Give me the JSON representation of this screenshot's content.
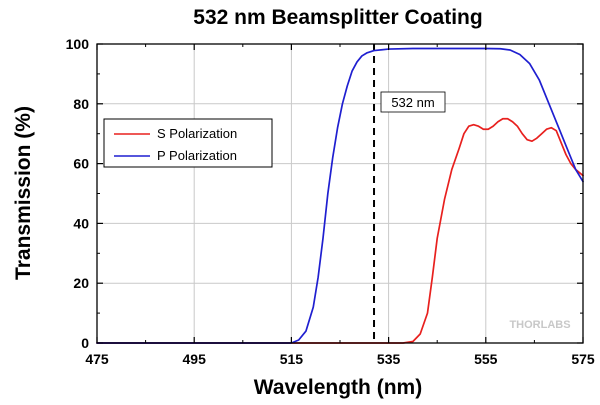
{
  "chart_data": {
    "type": "line",
    "title": "532 nm Beamsplitter Coating",
    "xlabel": "Wavelength (nm)",
    "ylabel": "Transmission (%)",
    "xlim": [
      475,
      575
    ],
    "ylim": [
      0,
      100
    ],
    "x_ticks": [
      475,
      495,
      515,
      535,
      555,
      575
    ],
    "y_ticks": [
      0,
      20,
      40,
      60,
      80,
      100
    ],
    "x_tick_labels": [
      "475",
      "495",
      "515",
      "535",
      "555",
      "575"
    ],
    "y_tick_labels": [
      "0",
      "20",
      "40",
      "60",
      "80",
      "100"
    ],
    "grid": true,
    "legend_position": "center-left",
    "series": [
      {
        "name": "S Polarization",
        "color": "#e8201e",
        "points": [
          [
            475,
            0
          ],
          [
            538,
            0
          ],
          [
            540,
            0.5
          ],
          [
            541.5,
            3
          ],
          [
            543,
            10
          ],
          [
            544,
            22
          ],
          [
            545,
            35
          ],
          [
            546.5,
            48
          ],
          [
            548,
            58
          ],
          [
            549.5,
            65
          ],
          [
            550.5,
            70
          ],
          [
            551.5,
            72.5
          ],
          [
            552.5,
            73
          ],
          [
            553.5,
            72.5
          ],
          [
            554.5,
            71.5
          ],
          [
            555.5,
            71.5
          ],
          [
            556.5,
            72.5
          ],
          [
            557.5,
            74
          ],
          [
            558.5,
            75
          ],
          [
            559.5,
            75
          ],
          [
            560.5,
            74
          ],
          [
            561.5,
            72.5
          ],
          [
            562.5,
            70
          ],
          [
            563.5,
            68
          ],
          [
            564.5,
            67.5
          ],
          [
            565.5,
            68.5
          ],
          [
            566.5,
            70
          ],
          [
            567.5,
            71.5
          ],
          [
            568.5,
            72
          ],
          [
            569.5,
            71
          ],
          [
            570.5,
            67
          ],
          [
            571.5,
            63
          ],
          [
            572.5,
            60
          ],
          [
            573.5,
            58
          ],
          [
            575,
            56
          ]
        ]
      },
      {
        "name": "P Polarization",
        "color": "#1f1fd0",
        "points": [
          [
            475,
            0
          ],
          [
            515,
            0
          ],
          [
            516.5,
            1
          ],
          [
            518,
            4
          ],
          [
            519.5,
            12
          ],
          [
            520.5,
            22
          ],
          [
            521.5,
            35
          ],
          [
            522.5,
            50
          ],
          [
            523.5,
            62
          ],
          [
            524.5,
            72
          ],
          [
            525.5,
            80
          ],
          [
            526.5,
            86
          ],
          [
            527.5,
            91
          ],
          [
            528.5,
            94
          ],
          [
            529.5,
            96
          ],
          [
            530.5,
            97
          ],
          [
            532,
            97.8
          ],
          [
            535,
            98.3
          ],
          [
            540,
            98.5
          ],
          [
            555,
            98.5
          ],
          [
            558,
            98.4
          ],
          [
            560,
            98
          ],
          [
            562,
            96.5
          ],
          [
            564,
            93.5
          ],
          [
            566,
            88
          ],
          [
            568,
            80
          ],
          [
            570,
            72
          ],
          [
            572,
            64
          ],
          [
            573.5,
            58
          ],
          [
            575,
            54
          ]
        ]
      }
    ],
    "annotations": [
      {
        "type": "vertical-dashed-line",
        "x": 532,
        "label": "532 nm"
      }
    ],
    "watermark": "THORLABS"
  }
}
